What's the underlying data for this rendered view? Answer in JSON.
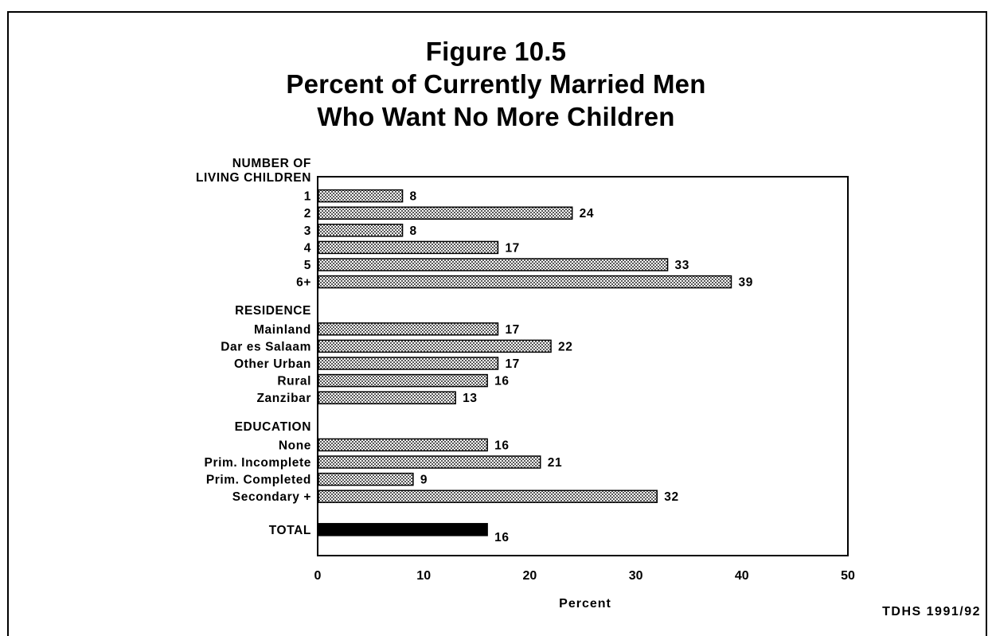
{
  "chart_data": {
    "type": "bar",
    "orientation": "horizontal",
    "title_lines": [
      "Figure 10.5",
      "Percent of Currently Married Men",
      "Who Want No More Children"
    ],
    "xlabel": "Percent",
    "xlim": [
      0,
      50
    ],
    "xticks": [
      0,
      10,
      20,
      30,
      40,
      50
    ],
    "grid": false,
    "source": "TDHS  1991/92",
    "groups": [
      {
        "header_lines": [
          "NUMBER OF",
          "LIVING CHILDREN"
        ],
        "categories": [
          "1",
          "2",
          "3",
          "4",
          "5",
          "6+"
        ],
        "values": [
          8,
          24,
          8,
          17,
          33,
          39
        ]
      },
      {
        "header_lines": [
          "RESIDENCE"
        ],
        "categories": [
          "Mainland",
          "Dar es Salaam",
          "Other Urban",
          "Rural",
          "Zanzibar"
        ],
        "values": [
          17,
          22,
          17,
          16,
          13
        ]
      },
      {
        "header_lines": [
          "EDUCATION"
        ],
        "categories": [
          "None",
          "Prim. Incomplete",
          "Prim. Completed",
          "Secondary +"
        ],
        "values": [
          16,
          21,
          9,
          32
        ]
      },
      {
        "header_lines": [],
        "categories": [
          "TOTAL"
        ],
        "values": [
          16
        ],
        "highlight": true
      }
    ],
    "colors": {
      "bar": "#d9d9d9",
      "bar_total": "#000000",
      "text": "#000000"
    }
  }
}
